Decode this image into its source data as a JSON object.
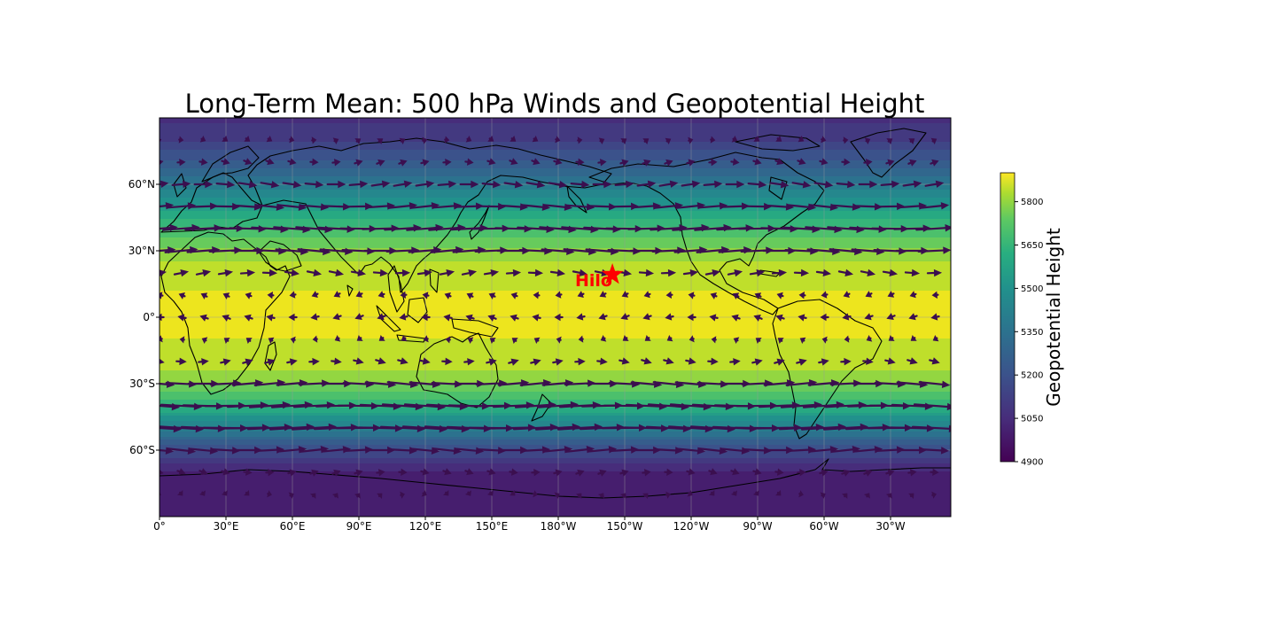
{
  "chart_data": {
    "type": "heatmap",
    "title": "Long-Term Mean: 500 hPa Winds and Geopotential Height",
    "projection": "PlateCarree, central longitude 180",
    "lon_range": [
      0,
      360
    ],
    "lat_range": [
      -90,
      90
    ],
    "x_ticks": [
      "0°",
      "30°E",
      "60°E",
      "90°E",
      "120°E",
      "150°E",
      "180°W",
      "150°W",
      "120°W",
      "90°W",
      "60°W",
      "30°W"
    ],
    "y_ticks": [
      "60°N",
      "30°N",
      "0°",
      "30°S",
      "60°S"
    ],
    "grid": true,
    "coastlines": true,
    "colormap": "viridis",
    "colorbar": {
      "label": "Geopotential Height",
      "range": [
        4900,
        5900
      ],
      "ticks": [
        "4900",
        "5050",
        "5200",
        "5350",
        "5500",
        "5650",
        "5800"
      ],
      "placement": "right"
    },
    "zonal_mean_height": [
      {
        "lat": 90,
        "value": 5060
      },
      {
        "lat": 80,
        "value": 5120
      },
      {
        "lat": 70,
        "value": 5230
      },
      {
        "lat": 60,
        "value": 5380
      },
      {
        "lat": 50,
        "value": 5540
      },
      {
        "lat": 40,
        "value": 5680
      },
      {
        "lat": 30,
        "value": 5790
      },
      {
        "lat": 20,
        "value": 5860
      },
      {
        "lat": 10,
        "value": 5880
      },
      {
        "lat": 0,
        "value": 5875
      },
      {
        "lat": -10,
        "value": 5875
      },
      {
        "lat": -20,
        "value": 5860
      },
      {
        "lat": -30,
        "value": 5780
      },
      {
        "lat": -40,
        "value": 5640
      },
      {
        "lat": -50,
        "value": 5400
      },
      {
        "lat": -60,
        "value": 5180
      },
      {
        "lat": -70,
        "value": 5020
      },
      {
        "lat": -80,
        "value": 4990
      },
      {
        "lat": -90,
        "value": 5000
      }
    ],
    "zonal_wind_profile": [
      {
        "lat": 80,
        "u": 2
      },
      {
        "lat": 70,
        "u": 4
      },
      {
        "lat": 60,
        "u": 9
      },
      {
        "lat": 50,
        "u": 14
      },
      {
        "lat": 40,
        "u": 18
      },
      {
        "lat": 30,
        "u": 16
      },
      {
        "lat": 20,
        "u": 7
      },
      {
        "lat": 10,
        "u": -3
      },
      {
        "lat": 0,
        "u": -4
      },
      {
        "lat": -10,
        "u": -2
      },
      {
        "lat": -20,
        "u": 5
      },
      {
        "lat": -30,
        "u": 15
      },
      {
        "lat": -40,
        "u": 20
      },
      {
        "lat": -50,
        "u": 22
      },
      {
        "lat": -60,
        "u": 14
      },
      {
        "lat": -70,
        "u": 4
      },
      {
        "lat": -80,
        "u": 1
      }
    ],
    "annotation": {
      "label": "Hilo",
      "lon": 204.9,
      "lat": 19.7,
      "marker": "star",
      "color": "#ff0000"
    },
    "wind_vector_color": "#3b0f4f"
  }
}
